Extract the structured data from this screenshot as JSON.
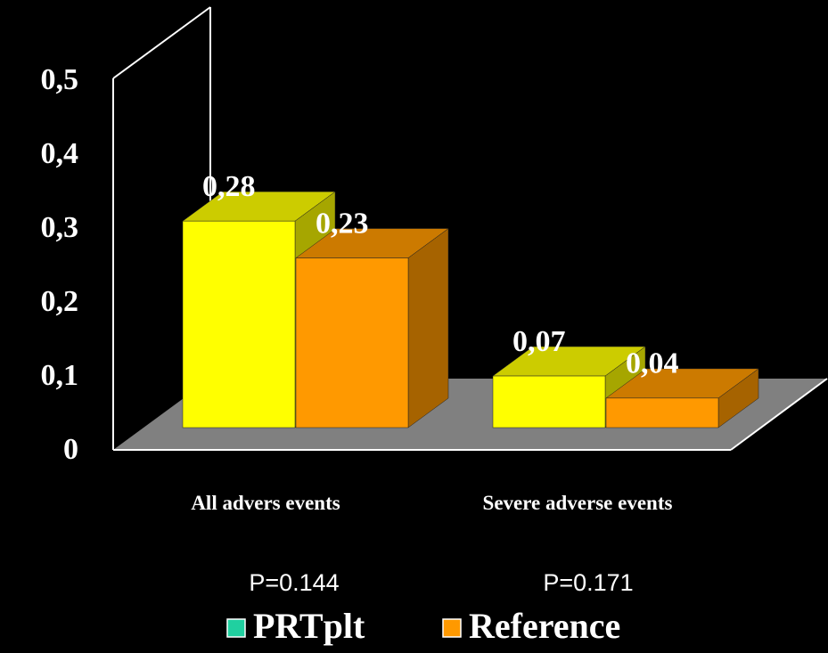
{
  "chart_data": {
    "type": "bar3d",
    "categories": [
      "All advers events",
      "Severe adverse events"
    ],
    "series": [
      {
        "name": "PRTplt",
        "color": "#ffff00",
        "legend_color": "#20d0a0",
        "values": [
          0.28,
          0.07
        ],
        "value_labels": [
          "0,28",
          "0,07"
        ]
      },
      {
        "name": "Reference",
        "color": "#ff9900",
        "legend_color": "#ff9900",
        "values": [
          0.23,
          0.04
        ],
        "value_labels": [
          "0,23",
          "0,04"
        ]
      }
    ],
    "ylim": [
      0,
      0.5
    ],
    "yticks": [
      0,
      {
        "value": 0.1,
        "label": "0,1"
      },
      {
        "value": 0.2,
        "label": "0,2"
      },
      {
        "value": 0.3,
        "label": "0,3"
      },
      {
        "value": 0.4,
        "label": "0,4"
      },
      {
        "value": 0.5,
        "label": "0,5"
      }
    ],
    "annotations": [
      "P=0.144",
      "P=0.171"
    ],
    "legend": "bottom"
  }
}
